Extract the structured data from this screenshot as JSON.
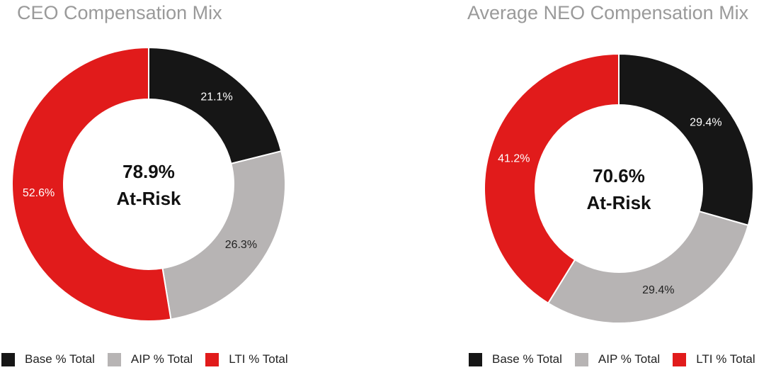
{
  "chart_data": [
    {
      "type": "pie",
      "variant": "donut",
      "title": "CEO Compensation Mix",
      "center_value": "78.9%",
      "center_caption": "At-Risk",
      "slices": [
        {
          "name": "Base % Total",
          "value": 21.1,
          "label": "21.1%",
          "color": "#161616",
          "label_color": "#ffffff"
        },
        {
          "name": "AIP % Total",
          "value": 26.3,
          "label": "26.3%",
          "color": "#b7b4b4",
          "label_color": "#222222"
        },
        {
          "name": "LTI % Total",
          "value": 52.6,
          "label": "52.6%",
          "color": "#e11b1b",
          "label_color": "#ffffff"
        }
      ],
      "legend": {
        "placement": "bottom",
        "items": [
          {
            "label": "Base % Total",
            "color": "#161616"
          },
          {
            "label": "AIP % Total",
            "color": "#b7b4b4"
          },
          {
            "label": "LTI % Total",
            "color": "#e11b1b"
          }
        ]
      }
    },
    {
      "type": "pie",
      "variant": "donut",
      "title": "Average NEO Compensation Mix",
      "center_value": "70.6%",
      "center_caption": "At-Risk",
      "slices": [
        {
          "name": "Base % Total",
          "value": 29.4,
          "label": "29.4%",
          "color": "#161616",
          "label_color": "#ffffff"
        },
        {
          "name": "AIP % Total",
          "value": 29.4,
          "label": "29.4%",
          "color": "#b7b4b4",
          "label_color": "#222222"
        },
        {
          "name": "LTI % Total",
          "value": 41.2,
          "label": "41.2%",
          "color": "#e11b1b",
          "label_color": "#ffffff"
        }
      ],
      "legend": {
        "placement": "bottom",
        "items": [
          {
            "label": "Base % Total",
            "color": "#161616"
          },
          {
            "label": "AIP % Total",
            "color": "#b7b4b4"
          },
          {
            "label": "LTI % Total",
            "color": "#e11b1b"
          }
        ]
      }
    }
  ]
}
